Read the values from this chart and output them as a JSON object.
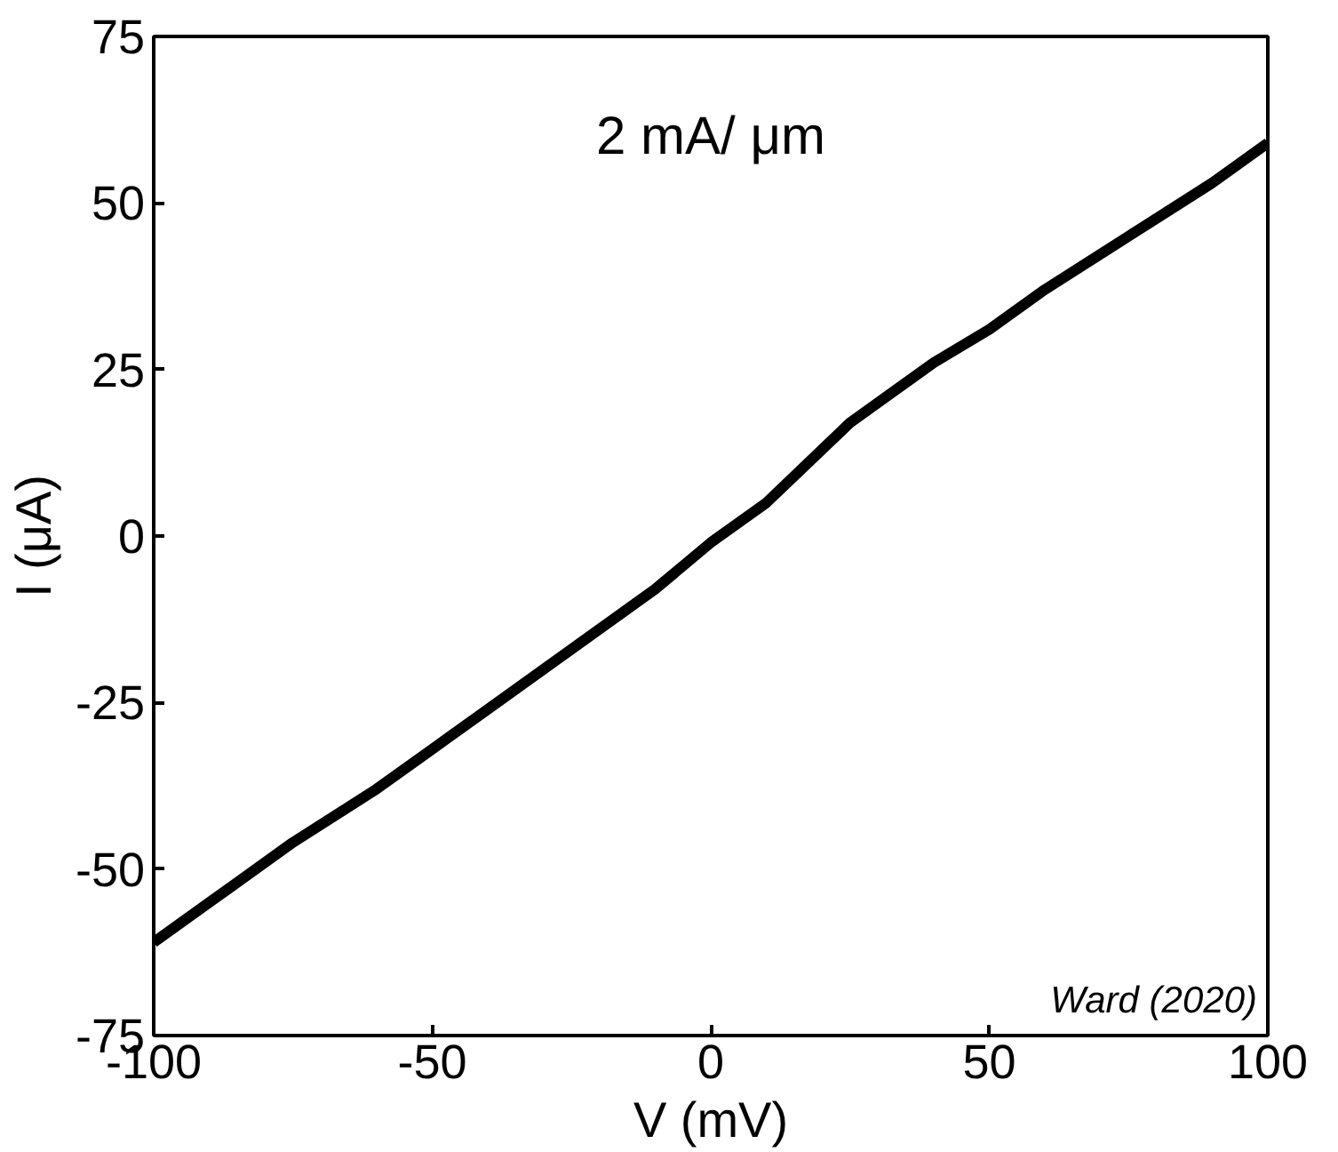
{
  "chart_data": {
    "type": "line",
    "xlabel": "V (mV)",
    "ylabel": "I (μA)",
    "annotations": [
      "2 mA/ μm",
      "Ward (2020)"
    ],
    "x": [
      -100,
      -90,
      -75,
      -60,
      -50,
      -40,
      -25,
      -10,
      0,
      10,
      25,
      40,
      50,
      60,
      75,
      90,
      100
    ],
    "series": [
      {
        "color": "#000000",
        "values": [
          -61,
          -55,
          -46,
          -38,
          -32,
          -26,
          -17,
          -8,
          -1,
          5,
          17,
          26,
          31,
          37,
          45,
          53,
          59
        ]
      }
    ],
    "xlim": [
      -100,
      100
    ],
    "ylim": [
      -75,
      75
    ],
    "xticks": [
      -100,
      -50,
      0,
      50,
      100
    ],
    "yticks": [
      -75,
      -50,
      -25,
      0,
      25,
      50,
      75
    ],
    "grid": false,
    "marker": "none",
    "line_style": "solid"
  }
}
